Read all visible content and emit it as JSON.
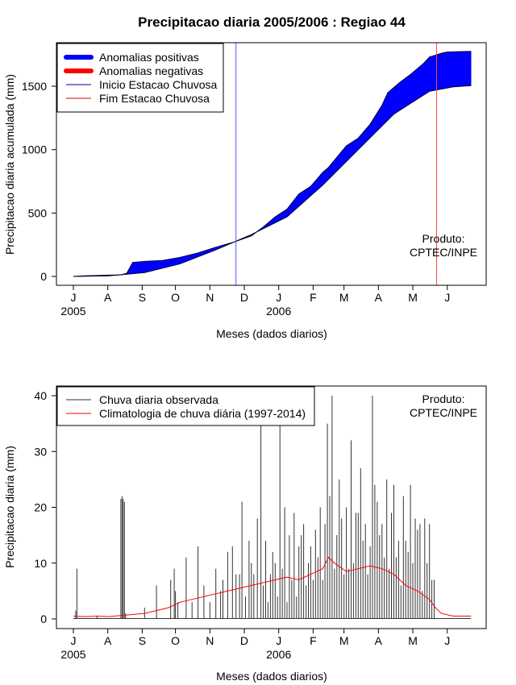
{
  "chart_data": [
    {
      "type": "area",
      "title": "Precipitacao diaria 2005/2006 : Regiao 44",
      "xlabel": "Meses (dados diarios)",
      "ylabel": "Precipitacao diaria acumulada (mm)",
      "ylim": [
        0,
        1800
      ],
      "yticks": [
        0,
        500,
        1000,
        1500
      ],
      "month_labels": [
        "J",
        "A",
        "S",
        "O",
        "N",
        "D",
        "J",
        "F",
        "M",
        "A",
        "M",
        "J"
      ],
      "year_labels": [
        "2005",
        "2006"
      ],
      "observed_accumulated_mm": {
        "day": [
          0,
          10,
          30,
          40,
          45,
          50,
          60,
          75,
          90,
          105,
          120,
          135,
          150,
          160,
          170,
          180,
          190,
          200,
          210,
          215,
          230,
          240,
          250,
          260,
          265,
          275,
          285,
          295,
          300,
          310,
          315,
          335
        ],
        "value": [
          0,
          5,
          10,
          12,
          25,
          110,
          118,
          125,
          150,
          185,
          230,
          270,
          320,
          390,
          470,
          530,
          650,
          710,
          820,
          860,
          1030,
          1090,
          1200,
          1350,
          1450,
          1530,
          1600,
          1680,
          1730,
          1760,
          1770,
          1775
        ]
      },
      "climatology_accumulated_mm": {
        "day": [
          0,
          30,
          60,
          90,
          120,
          150,
          180,
          210,
          240,
          270,
          290,
          300,
          320,
          335
        ],
        "value": [
          0,
          5,
          30,
          100,
          210,
          330,
          470,
          720,
          1000,
          1280,
          1400,
          1460,
          1495,
          1505
        ]
      },
      "onset_day": 137,
      "end_day": 306,
      "legend": [
        {
          "label": "Anomalias positivas",
          "color": "#0000ff"
        },
        {
          "label": "Anomalias negativas",
          "color": "#ff0000"
        },
        {
          "label": "Inicio Estacao Chuvosa",
          "color": "#0000aa"
        },
        {
          "label": "Fim Estacao Chuvosa",
          "color": "#dd0000"
        }
      ],
      "annotation": [
        "Produto:",
        "CPTEC/INPE"
      ]
    },
    {
      "type": "line",
      "xlabel": "Meses (dados diarios)",
      "ylabel": "Precipitacao diaria (mm)",
      "ylim": [
        0,
        40
      ],
      "yticks": [
        0,
        10,
        20,
        30,
        40
      ],
      "month_labels": [
        "J",
        "A",
        "S",
        "O",
        "N",
        "D",
        "J",
        "F",
        "M",
        "A",
        "M",
        "J"
      ],
      "year_labels": [
        "2005",
        "2006"
      ],
      "legend": [
        {
          "label": "Chuva diaria observada",
          "color": "#333333"
        },
        {
          "label": "Climatologia de chuva diária (1997-2014)",
          "color": "#ff0000"
        }
      ],
      "annotation": [
        "Produto:",
        "CPTEC/INPE"
      ],
      "observed_daily_mm": {
        "day": [
          2,
          3,
          20,
          40,
          41,
          42,
          43,
          44,
          60,
          70,
          82,
          85,
          86,
          88,
          95,
          100,
          105,
          110,
          115,
          120,
          124,
          126,
          130,
          134,
          137,
          140,
          142,
          145,
          148,
          150,
          152,
          155,
          158,
          160,
          162,
          164,
          166,
          168,
          170,
          172,
          174,
          176,
          178,
          180,
          182,
          184,
          186,
          188,
          190,
          192,
          194,
          196,
          198,
          200,
          202,
          204,
          206,
          208,
          210,
          212,
          214,
          216,
          218,
          220,
          222,
          224,
          226,
          228,
          230,
          232,
          234,
          236,
          238,
          240,
          242,
          244,
          246,
          248,
          250,
          252,
          254,
          256,
          258,
          260,
          262,
          264,
          266,
          268,
          270,
          272,
          274,
          276,
          278,
          280,
          282,
          284,
          286,
          288,
          290,
          292,
          294,
          296,
          298,
          300,
          302,
          304
        ],
        "value": [
          1.5,
          9,
          0.5,
          21.5,
          22,
          21.5,
          21,
          1,
          2,
          6,
          7,
          9,
          5,
          3,
          11,
          3,
          13,
          6,
          3,
          9,
          5,
          7,
          12,
          13,
          8,
          8,
          21,
          4,
          14,
          10,
          8,
          18,
          37,
          6,
          14,
          3,
          8,
          12,
          10,
          4,
          35,
          9,
          20,
          3,
          15,
          7,
          19,
          4,
          13,
          15,
          17,
          6,
          10,
          13,
          7,
          16,
          11,
          20,
          7,
          17,
          35,
          22,
          40,
          9,
          15,
          25,
          18,
          8,
          20,
          9,
          32,
          10,
          19,
          19,
          27,
          14,
          17,
          8,
          13,
          40,
          24,
          21,
          15,
          17,
          11,
          25,
          9,
          19,
          24,
          11,
          14,
          6,
          22,
          14,
          12,
          24,
          10,
          18,
          16,
          17,
          5,
          18,
          10,
          17,
          7,
          7
        ]
      },
      "climatology_daily_mm": {
        "day": [
          0,
          10,
          20,
          30,
          40,
          50,
          60,
          70,
          80,
          90,
          100,
          110,
          120,
          130,
          140,
          150,
          160,
          170,
          180,
          190,
          200,
          210,
          215,
          220,
          230,
          240,
          250,
          260,
          270,
          280,
          290,
          300,
          305,
          310,
          320,
          335
        ],
        "value": [
          0.5,
          0.4,
          0.5,
          0.4,
          0.6,
          0.8,
          1.0,
          1.5,
          2,
          3,
          3.5,
          4,
          4.5,
          5,
          5.5,
          6,
          6.5,
          7,
          7.5,
          7,
          8,
          9,
          11,
          10,
          8.5,
          9,
          9.5,
          9,
          8,
          6,
          5,
          3.5,
          2,
          1,
          0.5,
          0.5
        ]
      }
    }
  ]
}
